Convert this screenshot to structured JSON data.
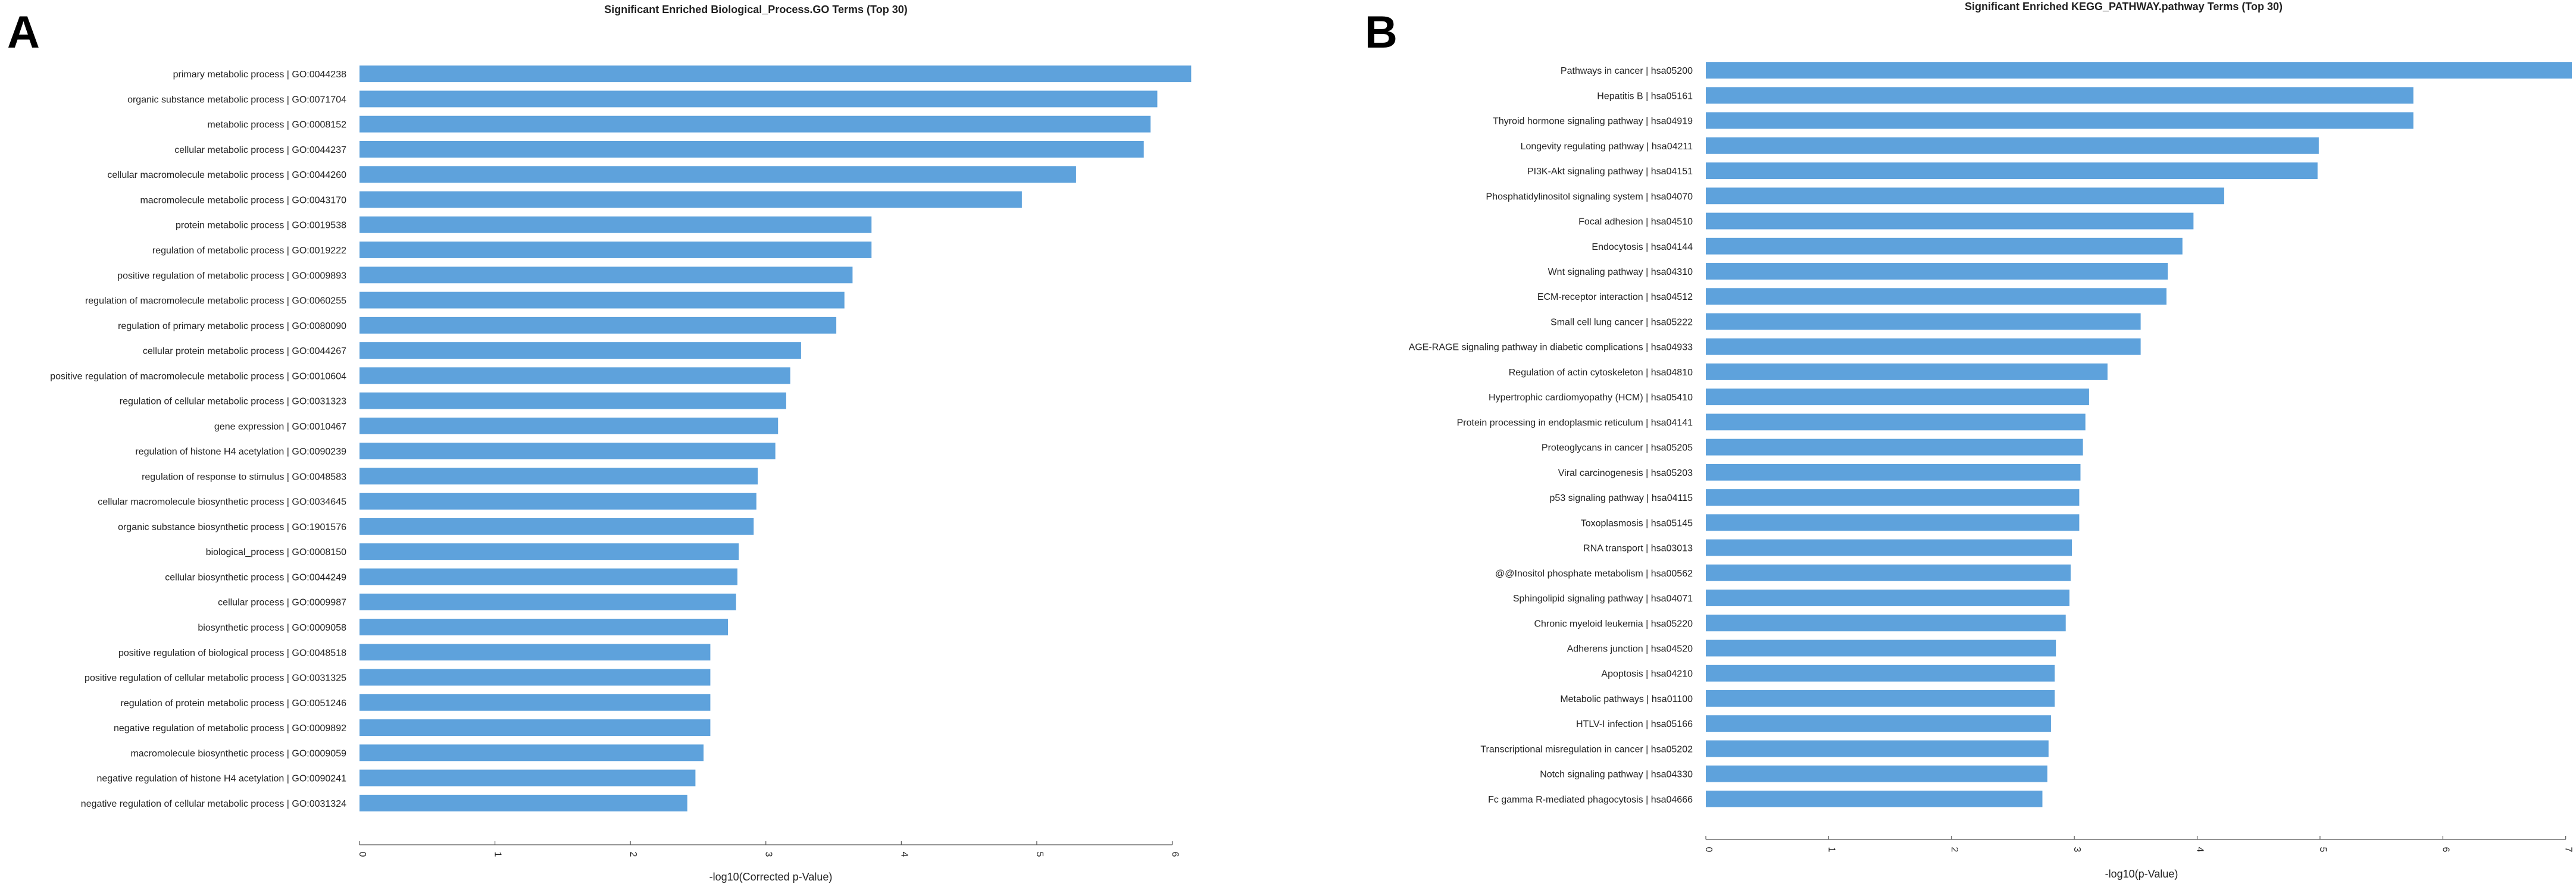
{
  "chart_data": [
    {
      "type": "bar",
      "orientation": "horizontal",
      "panel_label": "A",
      "title": "Significant Enriched Biological_Process.GO Terms (Top 30)",
      "xlabel": "-log10(Corrected p-Value)",
      "ylabel": "",
      "xlim": [
        0,
        6.2
      ],
      "xticks": [
        0,
        1,
        2,
        3,
        4,
        5,
        6
      ],
      "bar_color": "#5ea2dc",
      "categories": [
        "primary metabolic process | GO:0044238",
        "organic substance metabolic process | GO:0071704",
        "metabolic process | GO:0008152",
        "cellular metabolic process | GO:0044237",
        "cellular macromolecule metabolic process | GO:0044260",
        "macromolecule metabolic process | GO:0043170",
        "protein metabolic process | GO:0019538",
        "regulation of metabolic process | GO:0019222",
        "positive regulation of metabolic process | GO:0009893",
        "regulation of macromolecule metabolic process | GO:0060255",
        "regulation of primary metabolic process | GO:0080090",
        "cellular protein metabolic process | GO:0044267",
        "positive regulation of macromolecule metabolic process | GO:0010604",
        "regulation of cellular metabolic process | GO:0031323",
        "gene expression | GO:0010467",
        "regulation of histone H4 acetylation | GO:0090239",
        "regulation of response to stimulus | GO:0048583",
        "cellular macromolecule biosynthetic process | GO:0034645",
        "organic substance biosynthetic process | GO:1901576",
        "biological_process | GO:0008150",
        "cellular biosynthetic process | GO:0044249",
        "cellular process | GO:0009987",
        "biosynthetic process | GO:0009058",
        "positive regulation of biological process | GO:0048518",
        "positive regulation of cellular metabolic process | GO:0031325",
        "regulation of protein metabolic process | GO:0051246",
        "negative regulation of metabolic process | GO:0009892",
        "macromolecule biosynthetic process | GO:0009059",
        "negative regulation of histone H4 acetylation | GO:0090241",
        "negative regulation of cellular metabolic process | GO:0031324"
      ],
      "values": [
        6.14,
        5.89,
        5.84,
        5.79,
        5.29,
        4.89,
        3.78,
        3.78,
        3.64,
        3.58,
        3.52,
        3.26,
        3.18,
        3.15,
        3.09,
        3.07,
        2.94,
        2.93,
        2.91,
        2.8,
        2.79,
        2.78,
        2.72,
        2.59,
        2.59,
        2.59,
        2.59,
        2.54,
        2.48,
        2.42
      ]
    },
    {
      "type": "bar",
      "orientation": "horizontal",
      "panel_label": "B",
      "title": "Significant Enriched KEGG_PATHWAY.pathway Terms (Top 30)",
      "xlabel": "-log10(p-Value)",
      "ylabel": "",
      "xlim": [
        0,
        7.05
      ],
      "xticks": [
        0,
        1,
        2,
        3,
        4,
        5,
        6,
        7
      ],
      "bar_color": "#5ea2dc",
      "categories": [
        "Pathways in cancer | hsa05200",
        "Hepatitis B | hsa05161",
        "Thyroid hormone signaling pathway | hsa04919",
        "Longevity regulating pathway | hsa04211",
        "PI3K-Akt signaling pathway | hsa04151",
        "Phosphatidylinositol signaling system | hsa04070",
        "Focal adhesion | hsa04510",
        "Endocytosis | hsa04144",
        "Wnt signaling pathway | hsa04310",
        "ECM-receptor interaction | hsa04512",
        "Small cell lung cancer | hsa05222",
        "AGE-RAGE signaling pathway in diabetic complications | hsa04933",
        "Regulation of actin cytoskeleton | hsa04810",
        "Hypertrophic cardiomyopathy (HCM) | hsa05410",
        "Protein processing in endoplasmic reticulum | hsa04141",
        "Proteoglycans in cancer | hsa05205",
        "Viral carcinogenesis | hsa05203",
        "p53 signaling pathway | hsa04115",
        "Toxoplasmosis | hsa05145",
        "RNA transport | hsa03013",
        "@@Inositol phosphate metabolism | hsa00562",
        "Sphingolipid signaling pathway | hsa04071",
        "Chronic myeloid leukemia | hsa05220",
        "Adherens junction | hsa04520",
        "Apoptosis | hsa04210",
        "Metabolic pathways | hsa01100",
        "HTLV-I infection | hsa05166",
        "Transcriptional misregulation in cancer | hsa05202",
        "Notch signaling pathway | hsa04330",
        "Fc gamma R-mediated phagocytosis | hsa04666"
      ],
      "values": [
        7.05,
        5.76,
        5.76,
        4.99,
        4.98,
        4.22,
        3.97,
        3.88,
        3.76,
        3.75,
        3.54,
        3.54,
        3.27,
        3.12,
        3.09,
        3.07,
        3.05,
        3.04,
        3.04,
        2.98,
        2.97,
        2.96,
        2.93,
        2.85,
        2.84,
        2.84,
        2.81,
        2.79,
        2.78,
        2.74
      ]
    }
  ]
}
